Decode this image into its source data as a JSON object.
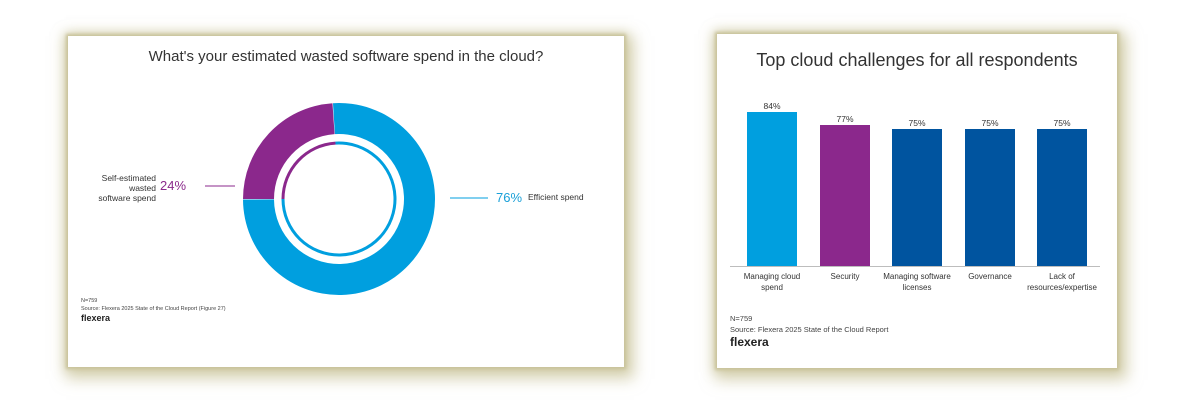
{
  "colors": {
    "cyan": "#009fdf",
    "purple": "#8b288c",
    "navy": "#00549f",
    "shadow": "#c9c39a"
  },
  "card1": {
    "title": "What's your estimated wasted software spend in the cloud?",
    "left_label": {
      "text_lines": [
        "Self-estimated",
        "wasted",
        "software spend"
      ],
      "pct": "24%"
    },
    "right_label": {
      "pct": "76%",
      "text": "Efficient spend"
    },
    "footer": {
      "n": "N=759",
      "source": "Source: Flexera 2025 State of the Cloud Report (Figure 27)",
      "logo": "flexera"
    }
  },
  "card2": {
    "title": "Top cloud challenges for all respondents",
    "footer": {
      "n": "N=759",
      "source": "Source: Flexera 2025 State of the Cloud Report",
      "logo": "flexera"
    }
  },
  "chart_data": [
    {
      "type": "pie",
      "subtype": "donut",
      "title": "What's your estimated wasted software spend in the cloud?",
      "categories": [
        "Self-estimated wasted software spend",
        "Efficient spend"
      ],
      "values": [
        24,
        76
      ],
      "colors": [
        "#8b288c",
        "#009fdf"
      ],
      "labels": [
        "24%",
        "76%"
      ],
      "note": "N=759",
      "source": "Source: Flexera 2025 State of the Cloud Report (Figure 27)"
    },
    {
      "type": "bar",
      "title": "Top cloud challenges for all respondents",
      "categories": [
        "Managing cloud spend",
        "Security",
        "Managing software licenses",
        "Governance",
        "Lack of resources/expertise"
      ],
      "category_lines": [
        [
          "Managing cloud",
          "spend"
        ],
        [
          "Security"
        ],
        [
          "Managing software",
          "licenses"
        ],
        [
          "Governance"
        ],
        [
          "Lack of",
          "resources/expertise"
        ]
      ],
      "values": [
        84,
        77,
        75,
        75,
        75
      ],
      "value_labels": [
        "84%",
        "77%",
        "75%",
        "75%",
        "75%"
      ],
      "colors": [
        "#009fdf",
        "#8b288c",
        "#00549f",
        "#00549f",
        "#00549f"
      ],
      "xlabel": "",
      "ylabel": "",
      "ylim": [
        0,
        100
      ],
      "grid": false,
      "legend": "none",
      "note": "N=759",
      "source": "Source: Flexera 2025 State of the Cloud Report"
    }
  ]
}
